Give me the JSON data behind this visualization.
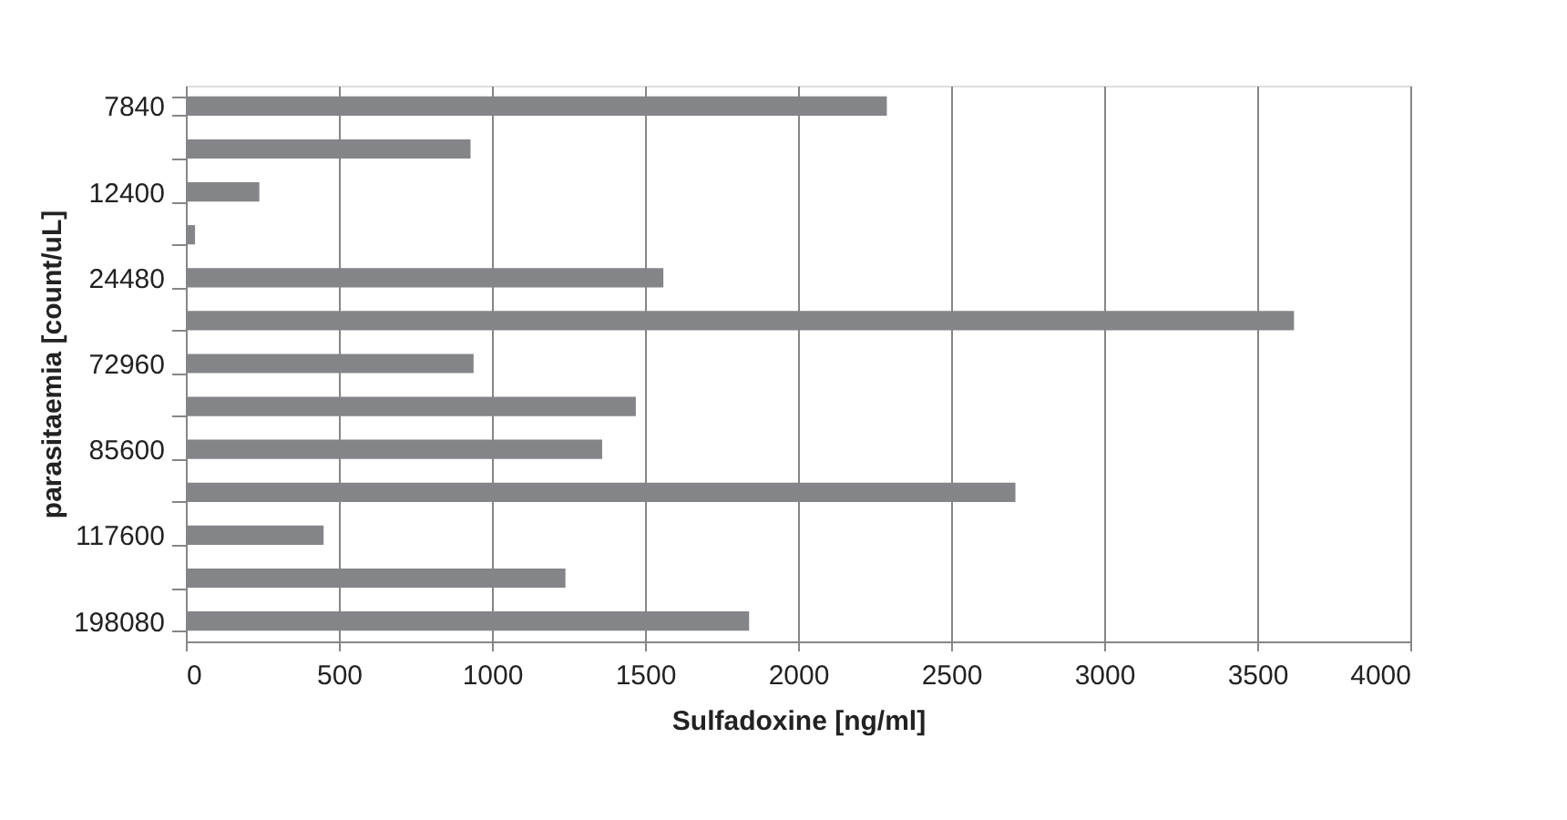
{
  "chart_data": {
    "type": "bar",
    "orientation": "horizontal",
    "xlabel": "Sulfadoxine [ng/ml]",
    "ylabel": "parasitaemia [count/uL]",
    "categories": [
      "7840",
      null,
      "12400",
      null,
      "24480",
      null,
      "72960",
      null,
      "85600",
      null,
      "117600",
      null,
      "198080"
    ],
    "values": [
      2290,
      930,
      240,
      30,
      1560,
      3620,
      940,
      1470,
      1360,
      2710,
      450,
      1240,
      1840
    ],
    "color": "#848589",
    "xlim": [
      0,
      4000
    ],
    "xticks": [
      0,
      500,
      1000,
      1500,
      2000,
      2500,
      3000,
      3500,
      4000
    ],
    "grid": "x"
  }
}
